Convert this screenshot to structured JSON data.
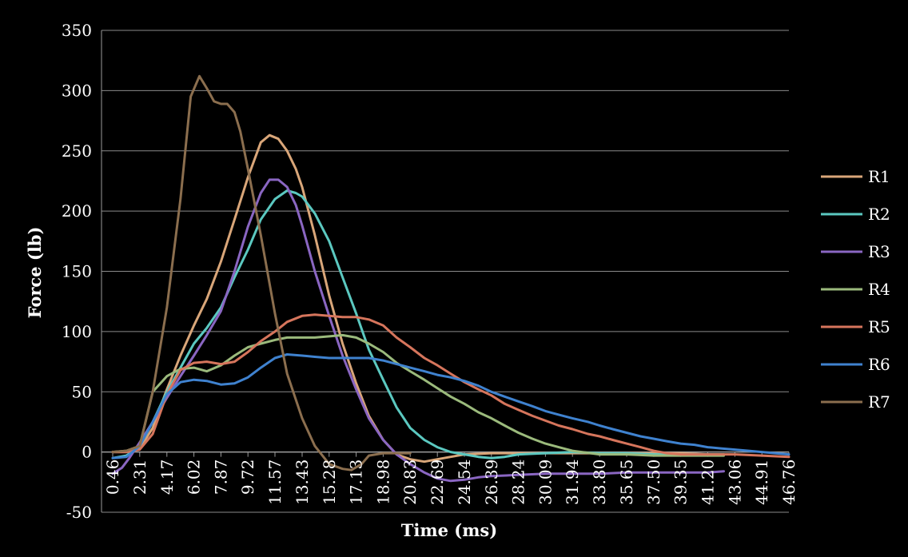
{
  "chart_data": {
    "type": "line",
    "title": "",
    "xlabel": "Time (ms)",
    "ylabel": "Force (lb)",
    "ylim": [
      -50,
      350
    ],
    "yticks": [
      -50,
      0,
      50,
      100,
      150,
      200,
      250,
      300,
      350
    ],
    "xlim": [
      0.46,
      46.76
    ],
    "xticks": [
      0.46,
      2.31,
      4.17,
      6.02,
      7.87,
      9.72,
      11.57,
      13.43,
      15.28,
      17.13,
      18.98,
      20.83,
      22.69,
      24.54,
      26.39,
      28.24,
      30.09,
      31.94,
      33.8,
      35.65,
      37.5,
      39.35,
      41.2,
      43.06,
      44.91,
      46.76
    ],
    "xtick_labels": [
      "0.46",
      "2.31",
      "4.17",
      "6.02",
      "7.87",
      "9.72",
      "11.57",
      "13.43",
      "15.28",
      "17.13",
      "18.98",
      "20.83",
      "22.69",
      "24.54",
      "26.39",
      "28.24",
      "30.09",
      "31.94",
      "33.80",
      "35.65",
      "37.50",
      "39.35",
      "41.20",
      "43.06",
      "44.91",
      "46.76"
    ],
    "grid": true,
    "legend_position": "right",
    "background": "#000000",
    "series": [
      {
        "name": "R1",
        "color": "#D9A679",
        "points": [
          [
            0.46,
            0
          ],
          [
            1.4,
            0
          ],
          [
            2.31,
            3
          ],
          [
            3.2,
            20
          ],
          [
            4.17,
            52
          ],
          [
            5.1,
            80
          ],
          [
            6.02,
            105
          ],
          [
            6.9,
            127
          ],
          [
            7.87,
            158
          ],
          [
            8.8,
            193
          ],
          [
            9.72,
            228
          ],
          [
            10.6,
            257
          ],
          [
            11.2,
            263
          ],
          [
            11.8,
            260
          ],
          [
            12.4,
            250
          ],
          [
            13.0,
            235
          ],
          [
            13.43,
            220
          ],
          [
            14.3,
            180
          ],
          [
            15.28,
            130
          ],
          [
            16.2,
            90
          ],
          [
            17.13,
            57
          ],
          [
            18.0,
            30
          ],
          [
            18.98,
            10
          ],
          [
            19.9,
            -2
          ],
          [
            20.83,
            -6
          ],
          [
            21.8,
            -8
          ],
          [
            22.69,
            -6
          ],
          [
            23.6,
            -4
          ],
          [
            24.54,
            -2
          ],
          [
            26.39,
            -1
          ],
          [
            28.24,
            -1
          ],
          [
            30.09,
            -1
          ],
          [
            33.8,
            -1
          ],
          [
            37.5,
            -1
          ],
          [
            39.35,
            -1
          ],
          [
            41.2,
            -2
          ],
          [
            42.3,
            -2
          ]
        ]
      },
      {
        "name": "R2",
        "color": "#5BC8C0",
        "points": [
          [
            0.46,
            -5
          ],
          [
            1.4,
            -3
          ],
          [
            2.31,
            5
          ],
          [
            3.2,
            25
          ],
          [
            4.17,
            50
          ],
          [
            5.1,
            70
          ],
          [
            6.02,
            90
          ],
          [
            6.9,
            103
          ],
          [
            7.87,
            120
          ],
          [
            8.8,
            145
          ],
          [
            9.72,
            168
          ],
          [
            10.6,
            193
          ],
          [
            11.57,
            210
          ],
          [
            12.4,
            217
          ],
          [
            13.0,
            215
          ],
          [
            13.43,
            212
          ],
          [
            14.3,
            198
          ],
          [
            15.28,
            175
          ],
          [
            16.2,
            145
          ],
          [
            17.13,
            115
          ],
          [
            18.0,
            85
          ],
          [
            18.98,
            60
          ],
          [
            19.9,
            37
          ],
          [
            20.83,
            20
          ],
          [
            21.8,
            10
          ],
          [
            22.69,
            4
          ],
          [
            23.6,
            0
          ],
          [
            24.54,
            -2
          ],
          [
            25.5,
            -4
          ],
          [
            26.39,
            -5
          ],
          [
            27.3,
            -4
          ],
          [
            28.24,
            -2
          ],
          [
            30.09,
            -1
          ],
          [
            31.94,
            0
          ],
          [
            33.8,
            -1
          ],
          [
            35.65,
            -1
          ],
          [
            37.5,
            -2
          ],
          [
            39.35,
            -2
          ],
          [
            41.2,
            -2
          ],
          [
            42.3,
            -2
          ]
        ]
      },
      {
        "name": "R3",
        "color": "#8A66C2",
        "points": [
          [
            0.46,
            -18
          ],
          [
            1.1,
            -13
          ],
          [
            1.6,
            -5
          ],
          [
            2.31,
            8
          ],
          [
            3.2,
            25
          ],
          [
            4.17,
            45
          ],
          [
            5.1,
            63
          ],
          [
            6.02,
            80
          ],
          [
            6.9,
            97
          ],
          [
            7.87,
            117
          ],
          [
            8.8,
            150
          ],
          [
            9.72,
            187
          ],
          [
            10.6,
            215
          ],
          [
            11.2,
            226
          ],
          [
            11.8,
            226
          ],
          [
            12.4,
            220
          ],
          [
            13.0,
            205
          ],
          [
            13.43,
            188
          ],
          [
            14.3,
            150
          ],
          [
            15.28,
            113
          ],
          [
            16.2,
            80
          ],
          [
            17.13,
            52
          ],
          [
            18.0,
            28
          ],
          [
            18.98,
            10
          ],
          [
            19.9,
            -2
          ],
          [
            20.83,
            -10
          ],
          [
            21.8,
            -17
          ],
          [
            22.69,
            -22
          ],
          [
            23.6,
            -24
          ],
          [
            24.54,
            -23
          ],
          [
            25.5,
            -21
          ],
          [
            26.39,
            -20
          ],
          [
            28.24,
            -19
          ],
          [
            30.09,
            -18
          ],
          [
            31.94,
            -18
          ],
          [
            33.8,
            -18
          ],
          [
            35.65,
            -17
          ],
          [
            37.5,
            -17
          ],
          [
            39.35,
            -17
          ],
          [
            41.2,
            -17
          ],
          [
            42.3,
            -16
          ]
        ]
      },
      {
        "name": "R4",
        "color": "#9BBA7C",
        "points": [
          [
            0.46,
            0
          ],
          [
            1.4,
            1
          ],
          [
            2.31,
            5
          ],
          [
            3.2,
            50
          ],
          [
            4.17,
            63
          ],
          [
            5.1,
            69
          ],
          [
            6.02,
            70
          ],
          [
            6.9,
            67
          ],
          [
            7.87,
            72
          ],
          [
            8.8,
            80
          ],
          [
            9.72,
            87
          ],
          [
            10.6,
            90
          ],
          [
            11.57,
            93
          ],
          [
            12.4,
            95
          ],
          [
            13.43,
            95
          ],
          [
            14.3,
            95
          ],
          [
            15.28,
            96
          ],
          [
            16.2,
            97
          ],
          [
            17.13,
            95
          ],
          [
            18.0,
            90
          ],
          [
            18.98,
            83
          ],
          [
            19.9,
            74
          ],
          [
            20.83,
            67
          ],
          [
            21.8,
            60
          ],
          [
            22.69,
            53
          ],
          [
            23.6,
            46
          ],
          [
            24.54,
            40
          ],
          [
            25.5,
            33
          ],
          [
            26.39,
            28
          ],
          [
            27.3,
            22
          ],
          [
            28.24,
            16
          ],
          [
            29.2,
            11
          ],
          [
            30.09,
            7
          ],
          [
            31.0,
            4
          ],
          [
            31.94,
            1
          ],
          [
            33.8,
            -2
          ],
          [
            35.65,
            -2
          ],
          [
            37.5,
            -3
          ],
          [
            39.35,
            -3
          ],
          [
            41.2,
            -3
          ],
          [
            42.3,
            -3
          ]
        ]
      },
      {
        "name": "R5",
        "color": "#D6755C",
        "points": [
          [
            0.46,
            0
          ],
          [
            1.4,
            0
          ],
          [
            2.31,
            2
          ],
          [
            3.2,
            15
          ],
          [
            4.17,
            48
          ],
          [
            5.1,
            68
          ],
          [
            6.02,
            74
          ],
          [
            6.9,
            75
          ],
          [
            7.87,
            73
          ],
          [
            8.8,
            75
          ],
          [
            9.72,
            83
          ],
          [
            10.6,
            92
          ],
          [
            11.57,
            100
          ],
          [
            12.4,
            108
          ],
          [
            13.43,
            113
          ],
          [
            14.3,
            114
          ],
          [
            15.28,
            113
          ],
          [
            16.2,
            112
          ],
          [
            17.13,
            112
          ],
          [
            18.0,
            110
          ],
          [
            18.98,
            105
          ],
          [
            19.9,
            95
          ],
          [
            20.83,
            87
          ],
          [
            21.8,
            78
          ],
          [
            22.69,
            72
          ],
          [
            23.6,
            65
          ],
          [
            24.54,
            58
          ],
          [
            25.5,
            52
          ],
          [
            26.39,
            47
          ],
          [
            27.3,
            40
          ],
          [
            28.24,
            35
          ],
          [
            29.2,
            30
          ],
          [
            30.09,
            26
          ],
          [
            31.0,
            22
          ],
          [
            31.94,
            19
          ],
          [
            33.0,
            15
          ],
          [
            33.8,
            13
          ],
          [
            34.7,
            10
          ],
          [
            35.65,
            7
          ],
          [
            36.6,
            4
          ],
          [
            37.5,
            1
          ],
          [
            38.4,
            -1
          ],
          [
            39.35,
            -2
          ],
          [
            41.2,
            -2
          ],
          [
            43.06,
            -2
          ],
          [
            44.91,
            -3
          ],
          [
            46.76,
            -4
          ]
        ]
      },
      {
        "name": "R6",
        "color": "#3F82CF",
        "points": [
          [
            0.46,
            -5
          ],
          [
            1.4,
            -4
          ],
          [
            2.31,
            5
          ],
          [
            3.2,
            25
          ],
          [
            4.17,
            48
          ],
          [
            5.1,
            58
          ],
          [
            6.02,
            60
          ],
          [
            6.9,
            59
          ],
          [
            7.87,
            56
          ],
          [
            8.8,
            57
          ],
          [
            9.72,
            62
          ],
          [
            10.6,
            70
          ],
          [
            11.57,
            78
          ],
          [
            12.4,
            81
          ],
          [
            13.43,
            80
          ],
          [
            14.3,
            79
          ],
          [
            15.28,
            78
          ],
          [
            16.2,
            78
          ],
          [
            17.13,
            78
          ],
          [
            18.0,
            78
          ],
          [
            18.98,
            76
          ],
          [
            19.9,
            73
          ],
          [
            20.83,
            70
          ],
          [
            21.8,
            67
          ],
          [
            22.69,
            64
          ],
          [
            23.6,
            62
          ],
          [
            24.54,
            59
          ],
          [
            25.5,
            55
          ],
          [
            26.39,
            50
          ],
          [
            27.3,
            46
          ],
          [
            28.24,
            42
          ],
          [
            29.2,
            38
          ],
          [
            30.09,
            34
          ],
          [
            31.0,
            31
          ],
          [
            31.94,
            28
          ],
          [
            33.0,
            25
          ],
          [
            33.8,
            22
          ],
          [
            34.7,
            19
          ],
          [
            35.65,
            16
          ],
          [
            36.6,
            13
          ],
          [
            37.5,
            11
          ],
          [
            38.4,
            9
          ],
          [
            39.35,
            7
          ],
          [
            40.3,
            6
          ],
          [
            41.2,
            4
          ],
          [
            42.1,
            3
          ],
          [
            43.06,
            2
          ],
          [
            44.0,
            1
          ],
          [
            44.91,
            0
          ],
          [
            45.8,
            -1
          ],
          [
            46.76,
            -2
          ]
        ]
      },
      {
        "name": "R7",
        "color": "#8B6E4E",
        "points": [
          [
            0.46,
            0
          ],
          [
            1.4,
            1
          ],
          [
            2.31,
            5
          ],
          [
            3.2,
            50
          ],
          [
            4.17,
            120
          ],
          [
            5.1,
            210
          ],
          [
            5.8,
            295
          ],
          [
            6.4,
            312
          ],
          [
            6.9,
            302
          ],
          [
            7.4,
            291
          ],
          [
            7.87,
            289
          ],
          [
            8.3,
            289
          ],
          [
            8.8,
            282
          ],
          [
            9.2,
            266
          ],
          [
            9.72,
            235
          ],
          [
            10.6,
            180
          ],
          [
            11.57,
            115
          ],
          [
            12.4,
            65
          ],
          [
            13.43,
            28
          ],
          [
            14.3,
            5
          ],
          [
            15.28,
            -10
          ],
          [
            16.2,
            -14
          ],
          [
            16.8,
            -15
          ],
          [
            17.5,
            -10
          ],
          [
            18.0,
            -3
          ],
          [
            18.98,
            -1
          ],
          [
            20.0,
            -1
          ],
          [
            20.83,
            -1
          ]
        ]
      }
    ]
  }
}
